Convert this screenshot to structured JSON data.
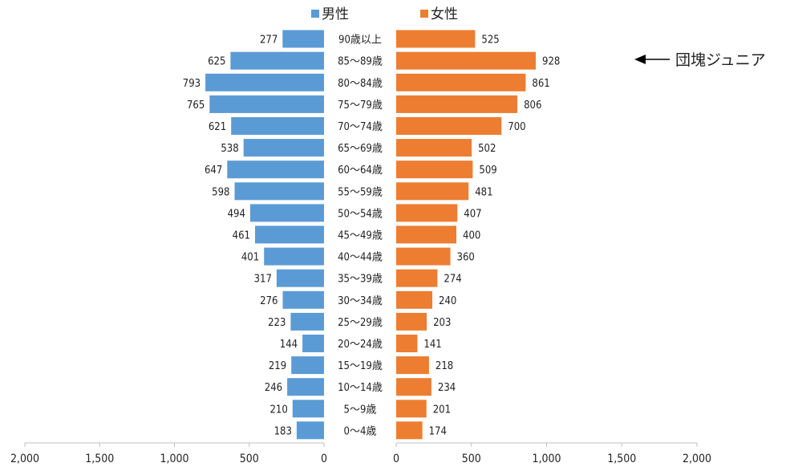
{
  "chart_data": {
    "type": "bar",
    "orientation": "horizontal",
    "layout": "population-pyramid",
    "categories": [
      "90歳以上",
      "85～89歳",
      "80～84歳",
      "75～79歳",
      "70～74歳",
      "65～69歳",
      "60～64歳",
      "55～59歳",
      "50～54歳",
      "45～49歳",
      "40～44歳",
      "35～39歳",
      "30～34歳",
      "25～29歳",
      "20～24歳",
      "15～19歳",
      "10～14歳",
      "5～9歳",
      "0～4歳"
    ],
    "series": [
      {
        "name": "男性",
        "color": "#5b9bd5",
        "side": "left",
        "values": [
          277,
          625,
          793,
          765,
          621,
          538,
          647,
          598,
          494,
          461,
          401,
          317,
          276,
          223,
          144,
          219,
          246,
          210,
          183
        ]
      },
      {
        "name": "女性",
        "color": "#ed7d31",
        "side": "right",
        "values": [
          525,
          928,
          861,
          806,
          700,
          502,
          509,
          481,
          407,
          400,
          360,
          274,
          240,
          203,
          141,
          218,
          234,
          201,
          174
        ]
      }
    ],
    "xlim": [
      0,
      2000
    ],
    "left_axis_ticks": [
      "2,000",
      "1,500",
      "1,000",
      "500",
      "0"
    ],
    "right_axis_ticks": [
      "0",
      "500",
      "1,000",
      "1,500",
      "2,000"
    ],
    "legend_position": "top-center",
    "annotation": {
      "text": "団塊ジュニア",
      "category": "85～89歳",
      "arrow": "left"
    }
  }
}
